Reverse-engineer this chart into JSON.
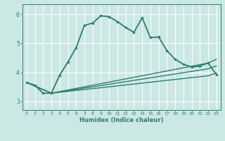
{
  "xlabel": "Humidex (Indice chaleur)",
  "bg_color": "#cce8e4",
  "grid_color": "#ffffff",
  "line_color": "#2d7d6e",
  "xlim": [
    -0.5,
    23.5
  ],
  "ylim": [
    2.7,
    6.35
  ],
  "yticks": [
    3,
    4,
    5,
    6
  ],
  "xticks": [
    0,
    1,
    2,
    3,
    4,
    5,
    6,
    7,
    8,
    9,
    10,
    11,
    12,
    13,
    14,
    15,
    16,
    17,
    18,
    19,
    20,
    21,
    22,
    23
  ],
  "series": [
    {
      "x": [
        0,
        1,
        2,
        3,
        4,
        5,
        6,
        7,
        8,
        9,
        10,
        11,
        12,
        13,
        14,
        15,
        16,
        17,
        18,
        19,
        20,
        21,
        22,
        23
      ],
      "y": [
        3.65,
        3.55,
        3.28,
        3.28,
        3.9,
        4.35,
        4.85,
        5.62,
        5.7,
        5.95,
        5.92,
        5.75,
        5.55,
        5.38,
        5.88,
        5.2,
        5.22,
        4.75,
        4.45,
        4.28,
        4.18,
        4.22,
        4.32,
        3.92
      ],
      "marker": true,
      "linewidth": 1.3
    },
    {
      "x": [
        0,
        3,
        22,
        23
      ],
      "y": [
        3.65,
        3.28,
        4.32,
        4.45
      ],
      "marker": false,
      "linewidth": 1.0
    },
    {
      "x": [
        0,
        3,
        22,
        23
      ],
      "y": [
        3.65,
        3.28,
        4.12,
        4.22
      ],
      "marker": false,
      "linewidth": 1.0
    },
    {
      "x": [
        0,
        3,
        22,
        23
      ],
      "y": [
        3.65,
        3.28,
        3.88,
        3.98
      ],
      "marker": false,
      "linewidth": 1.0
    }
  ]
}
